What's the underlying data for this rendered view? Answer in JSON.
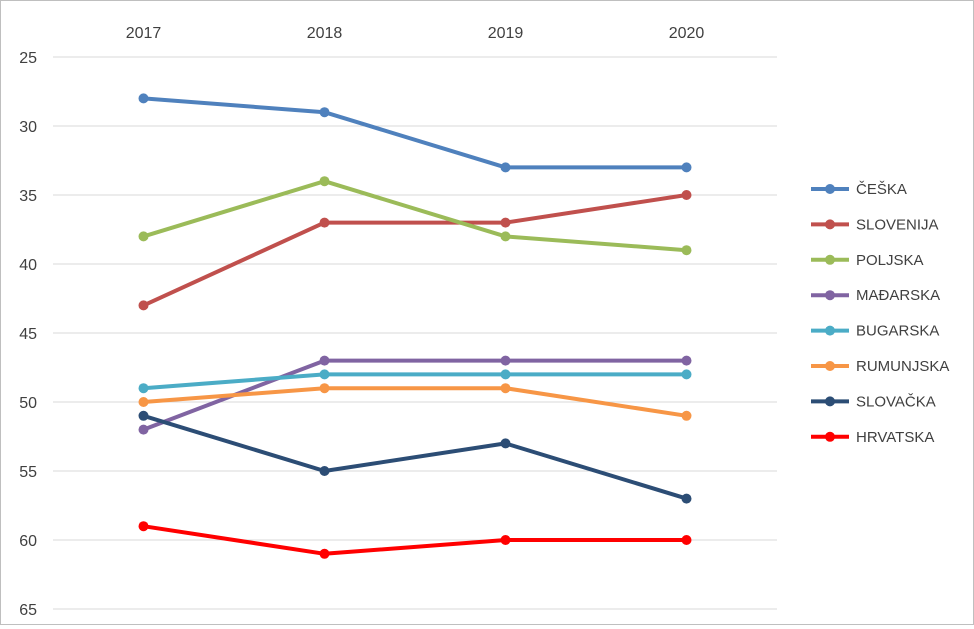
{
  "chart_data": {
    "type": "line",
    "title": "",
    "xlabel": "",
    "ylabel": "",
    "x": [
      "2017",
      "2018",
      "2019",
      "2020"
    ],
    "y_ticks": [
      "25",
      "30",
      "35",
      "40",
      "45",
      "50",
      "55",
      "60",
      "65"
    ],
    "ylim": [
      25,
      65
    ],
    "y_inverted": true,
    "x_axis_position": "top",
    "grid": true,
    "legend": "right",
    "series": [
      {
        "name": "ČEŠKA",
        "values": [
          28,
          29,
          33,
          33
        ],
        "color": "#4F81BD"
      },
      {
        "name": "SLOVENIJA",
        "values": [
          43,
          37,
          37,
          35
        ],
        "color": "#C0504D"
      },
      {
        "name": "POLJSKA",
        "values": [
          38,
          34,
          38,
          39
        ],
        "color": "#9BBB59"
      },
      {
        "name": "MAĐARSKA",
        "values": [
          52,
          47,
          47,
          47
        ],
        "color": "#8064A2"
      },
      {
        "name": "BUGARSKA",
        "values": [
          49,
          48,
          48,
          48
        ],
        "color": "#4BACC6"
      },
      {
        "name": "RUMUNJSKA",
        "values": [
          50,
          49,
          49,
          51
        ],
        "color": "#F79646"
      },
      {
        "name": "SLOVAČKA",
        "values": [
          51,
          55,
          53,
          57
        ],
        "color": "#2C4D75"
      },
      {
        "name": "HRVATSKA",
        "values": [
          59,
          61,
          60,
          60
        ],
        "color": "#FF0000"
      }
    ]
  }
}
